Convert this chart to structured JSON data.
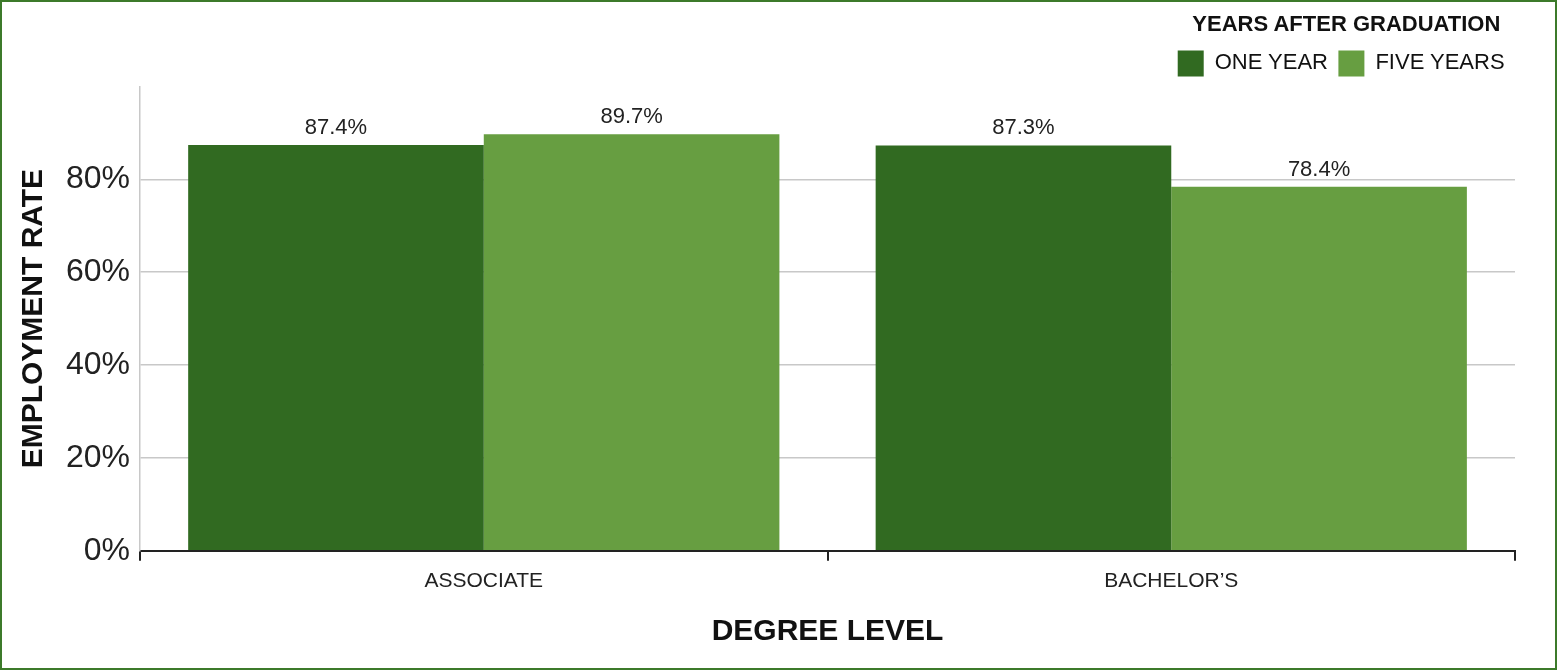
{
  "chart_data": {
    "type": "bar",
    "xlabel": "DEGREE LEVEL",
    "ylabel": "EMPLOYMENT RATE",
    "legend_title": "YEARS AFTER GRADUATION",
    "categories": [
      "ASSOCIATE",
      "BACHELOR’S"
    ],
    "series": [
      {
        "name": "ONE YEAR",
        "color": "#316a21",
        "values": [
          87.4,
          87.3
        ],
        "value_labels": [
          "87.4%",
          "87.3%"
        ]
      },
      {
        "name": "FIVE YEARS",
        "color": "#679e41",
        "values": [
          89.7,
          78.4
        ],
        "value_labels": [
          "89.7%",
          "78.4%"
        ]
      }
    ],
    "yticks": [
      {
        "value": 0,
        "label": "0%"
      },
      {
        "value": 20,
        "label": "20%"
      },
      {
        "value": 40,
        "label": "40%"
      },
      {
        "value": 60,
        "label": "60%"
      },
      {
        "value": 80,
        "label": "80%"
      }
    ],
    "ylim": [
      0,
      100
    ],
    "grid": "y",
    "legend": "top right"
  }
}
